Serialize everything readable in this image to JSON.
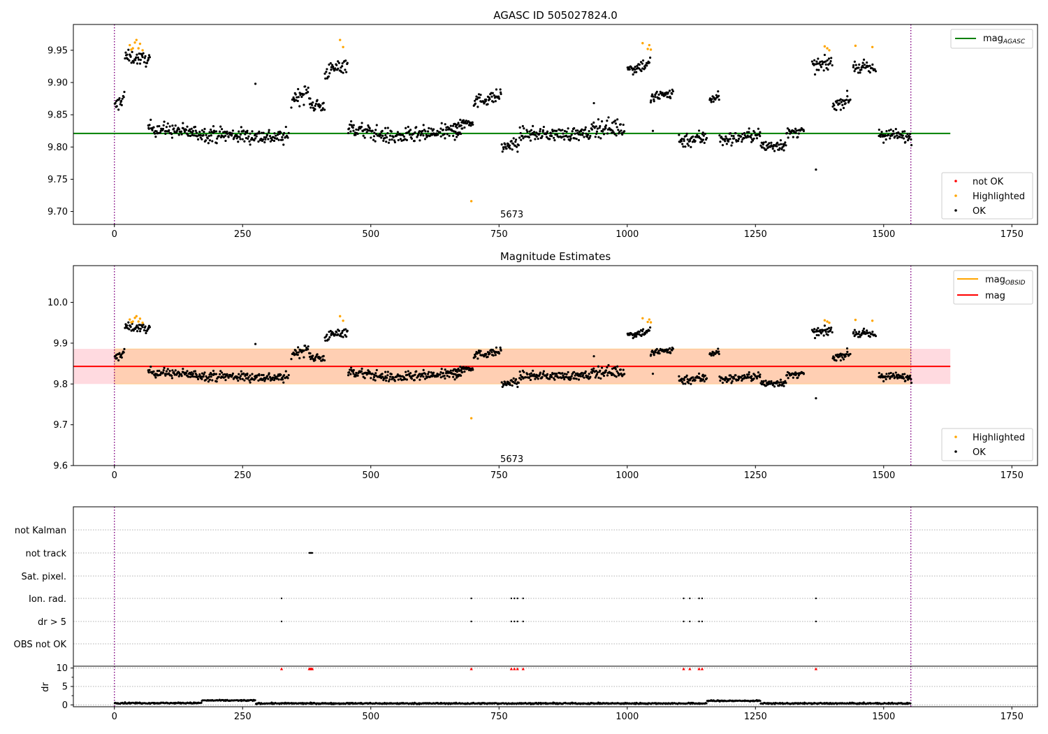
{
  "chart_data": [
    {
      "type": "scatter",
      "title": "AGASC ID 505027824.0",
      "xlim": [
        -80,
        1800
      ],
      "ylim": [
        9.68,
        9.99
      ],
      "xticks": [
        0,
        250,
        500,
        750,
        1000,
        1250,
        1500,
        1750
      ],
      "yticks": [
        9.7,
        9.75,
        9.8,
        9.85,
        9.9,
        9.95
      ],
      "ytick_labels": [
        "9.70",
        "9.75",
        "9.80",
        "9.85",
        "9.90",
        "9.95"
      ],
      "vlines": [
        0,
        1553
      ],
      "hline": {
        "name": "mag",
        "subscript": "AGASC",
        "y": 9.821,
        "x": [
          -80,
          1630
        ],
        "color": "#008000"
      },
      "annotation": {
        "text": "5673",
        "x": 775,
        "y": 9.695
      },
      "legend_lines": [
        {
          "name": "mag",
          "subscript": "AGASC",
          "color": "#008000"
        }
      ],
      "legend_points": [
        {
          "name": "not OK",
          "color": "#ff0000"
        },
        {
          "name": "Highlighted",
          "color": "#ffa500"
        },
        {
          "name": "OK",
          "color": "#000000"
        }
      ],
      "segments": [
        {
          "x0": 0,
          "x1": 20,
          "y0": 9.86,
          "y1": 9.88,
          "sd": 0.012
        },
        {
          "x0": 20,
          "x1": 70,
          "y0": 9.94,
          "y1": 9.935,
          "sd": 0.01
        },
        {
          "x0": 65,
          "x1": 180,
          "y0": 9.83,
          "y1": 9.82,
          "sd": 0.011
        },
        {
          "x0": 180,
          "x1": 340,
          "y0": 9.82,
          "y1": 9.815,
          "sd": 0.012
        },
        {
          "x0": 345,
          "x1": 380,
          "y0": 9.875,
          "y1": 9.885,
          "sd": 0.013
        },
        {
          "x0": 380,
          "x1": 410,
          "y0": 9.87,
          "y1": 9.86,
          "sd": 0.013
        },
        {
          "x0": 410,
          "x1": 455,
          "y0": 9.915,
          "y1": 9.93,
          "sd": 0.012
        },
        {
          "x0": 455,
          "x1": 545,
          "y0": 9.83,
          "y1": 9.815,
          "sd": 0.012
        },
        {
          "x0": 545,
          "x1": 680,
          "y0": 9.815,
          "y1": 9.825,
          "sd": 0.012
        },
        {
          "x0": 660,
          "x1": 700,
          "y0": 9.835,
          "y1": 9.84,
          "sd": 0.008
        },
        {
          "x0": 700,
          "x1": 755,
          "y0": 9.87,
          "y1": 9.88,
          "sd": 0.01
        },
        {
          "x0": 755,
          "x1": 790,
          "y0": 9.8,
          "y1": 9.805,
          "sd": 0.01
        },
        {
          "x0": 790,
          "x1": 930,
          "y0": 9.82,
          "y1": 9.82,
          "sd": 0.01
        },
        {
          "x0": 930,
          "x1": 995,
          "y0": 9.83,
          "y1": 9.83,
          "sd": 0.014
        },
        {
          "x0": 1000,
          "x1": 1045,
          "y0": 9.92,
          "y1": 9.93,
          "sd": 0.01
        },
        {
          "x0": 1045,
          "x1": 1090,
          "y0": 9.875,
          "y1": 9.885,
          "sd": 0.01
        },
        {
          "x0": 1100,
          "x1": 1155,
          "y0": 9.81,
          "y1": 9.815,
          "sd": 0.012
        },
        {
          "x0": 1160,
          "x1": 1180,
          "y0": 9.875,
          "y1": 9.88,
          "sd": 0.01
        },
        {
          "x0": 1180,
          "x1": 1260,
          "y0": 9.81,
          "y1": 9.82,
          "sd": 0.01
        },
        {
          "x0": 1260,
          "x1": 1310,
          "y0": 9.8,
          "y1": 9.805,
          "sd": 0.01
        },
        {
          "x0": 1310,
          "x1": 1345,
          "y0": 9.82,
          "y1": 9.825,
          "sd": 0.008
        },
        {
          "x0": 1360,
          "x1": 1400,
          "y0": 9.925,
          "y1": 9.93,
          "sd": 0.01
        },
        {
          "x0": 1400,
          "x1": 1435,
          "y0": 9.865,
          "y1": 9.875,
          "sd": 0.01
        },
        {
          "x0": 1440,
          "x1": 1485,
          "y0": 9.925,
          "y1": 9.92,
          "sd": 0.01
        },
        {
          "x0": 1490,
          "x1": 1555,
          "y0": 9.82,
          "y1": 9.815,
          "sd": 0.01
        }
      ],
      "highlighted_points": [
        [
          30,
          9.958
        ],
        [
          33,
          9.951
        ],
        [
          36,
          9.953
        ],
        [
          40,
          9.962
        ],
        [
          43,
          9.966
        ],
        [
          47,
          9.953
        ],
        [
          50,
          9.96
        ],
        [
          55,
          9.95
        ],
        [
          440,
          9.966
        ],
        [
          446,
          9.955
        ],
        [
          696,
          9.716
        ],
        [
          1030,
          9.961
        ],
        [
          1040,
          9.952
        ],
        [
          1043,
          9.958
        ],
        [
          1046,
          9.951
        ],
        [
          1385,
          9.956
        ],
        [
          1390,
          9.953
        ],
        [
          1394,
          9.95
        ],
        [
          1445,
          9.957
        ],
        [
          1478,
          9.955
        ]
      ],
      "outliers": [
        [
          1368,
          9.765
        ],
        [
          275,
          9.898
        ],
        [
          935,
          9.868
        ],
        [
          1050,
          9.825
        ]
      ]
    },
    {
      "type": "scatter",
      "title": "Magnitude Estimates",
      "xlim": [
        -80,
        1800
      ],
      "ylim": [
        9.6,
        10.09
      ],
      "xticks": [
        0,
        250,
        500,
        750,
        1000,
        1250,
        1500,
        1750
      ],
      "yticks": [
        9.6,
        9.7,
        9.8,
        9.9,
        10.0
      ],
      "ytick_labels": [
        "9.6",
        "9.7",
        "9.8",
        "9.9",
        "10.0"
      ],
      "vlines": [
        0,
        1553
      ],
      "hline": {
        "name": "mag",
        "y": 9.843,
        "x": [
          -80,
          1630
        ],
        "color": "#ff0000"
      },
      "band_mag": {
        "y0": 9.8,
        "y1": 9.886,
        "x": [
          -80,
          1630
        ],
        "color": "#ffb6c1"
      },
      "band_obsid": {
        "y0": 9.8,
        "y1": 9.886,
        "x": [
          0,
          1553
        ],
        "color": "#ffa500"
      },
      "annotation": {
        "text": "5673",
        "x": 775,
        "y": 9.615
      },
      "legend_lines": [
        {
          "name": "mag",
          "subscript": "OBSID",
          "color": "#ffa500"
        },
        {
          "name": "mag",
          "color": "#ff0000"
        }
      ],
      "legend_points": [
        {
          "name": "Highlighted",
          "color": "#ffa500"
        },
        {
          "name": "OK",
          "color": "#000000"
        }
      ]
    },
    {
      "type": "scatter",
      "categories": [
        "not Kalman",
        "not track",
        "Sat. pixel.",
        "Ion. rad.",
        "dr > 5",
        "OBS not OK"
      ],
      "xlim": [
        -80,
        1800
      ],
      "xticks": [
        0,
        250,
        500,
        750,
        1000,
        1250,
        1500,
        1750
      ],
      "vlines": [
        0,
        1553
      ],
      "flags": {
        "not track": [
          380,
          381,
          382,
          383,
          384,
          385,
          386
        ],
        "Ion. rad.": [
          326,
          696,
          774,
          780,
          786,
          797,
          1110,
          1122,
          1140,
          1146,
          1368
        ],
        "dr > 5": [
          326,
          696,
          774,
          780,
          786,
          797,
          1110,
          1122,
          1140,
          1146,
          1368
        ]
      },
      "dr_panel": {
        "ylabel": "dr",
        "ylim": [
          -0.5,
          10.5
        ],
        "yticks": [
          0,
          5,
          10
        ],
        "ytick_labels": [
          "0",
          "5",
          "10"
        ],
        "clipped_x": [
          326,
          380,
          382,
          384,
          386,
          696,
          774,
          780,
          786,
          797,
          1110,
          1122,
          1140,
          1146,
          1368
        ],
        "levels": [
          {
            "x0": 0,
            "x1": 170,
            "y": 0.5
          },
          {
            "x0": 170,
            "x1": 275,
            "y": 1.2
          },
          {
            "x0": 275,
            "x1": 1155,
            "y": 0.4
          },
          {
            "x0": 1155,
            "x1": 1260,
            "y": 1.1
          },
          {
            "x0": 1260,
            "x1": 1553,
            "y": 0.4
          }
        ]
      }
    }
  ]
}
